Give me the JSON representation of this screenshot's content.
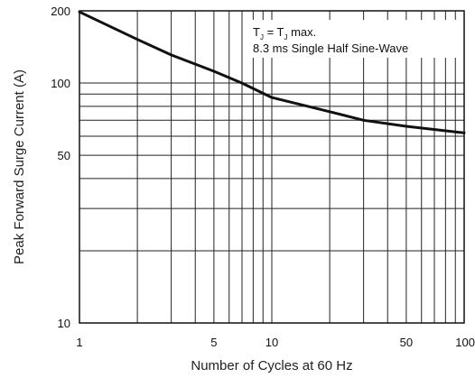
{
  "chart_data": {
    "type": "line",
    "title": "",
    "xlabel": "Number of Cycles at 60 Hz",
    "ylabel": "Peak Forward Surge Current (A)",
    "x_scale": "log",
    "y_scale": "log",
    "xlim": [
      1,
      100
    ],
    "ylim": [
      10,
      200
    ],
    "grid": true,
    "x_ticks": [
      {
        "value": 1,
        "label": "1"
      },
      {
        "value": 5,
        "label": "5"
      },
      {
        "value": 10,
        "label": "10"
      },
      {
        "value": 50,
        "label": "50"
      },
      {
        "value": 100,
        "label": "100"
      }
    ],
    "y_ticks": [
      {
        "value": 10,
        "label": "10"
      },
      {
        "value": 50,
        "label": "50"
      },
      {
        "value": 100,
        "label": "100"
      },
      {
        "value": 200,
        "label": "200"
      }
    ],
    "x_grid": [
      1,
      2,
      3,
      4,
      5,
      6,
      7,
      8,
      9,
      10,
      20,
      30,
      40,
      50,
      60,
      70,
      80,
      90,
      100
    ],
    "y_grid": [
      10,
      20,
      30,
      40,
      50,
      60,
      70,
      80,
      90,
      100,
      200
    ],
    "series": [
      {
        "x": [
          1,
          2,
          3,
          5,
          7,
          10,
          20,
          30,
          50,
          100
        ],
        "values": [
          198,
          152,
          131,
          112,
          100,
          87,
          76,
          70,
          66,
          62
        ]
      }
    ],
    "annotations": {
      "condition": {
        "main": "T",
        "sub": "J",
        "mid": " = T",
        "sub2": "J",
        "end": " max."
      },
      "line2": "8.3 ms Single Half Sine-Wave"
    },
    "colors": {
      "line": "#111111",
      "grid": "#222222"
    }
  }
}
